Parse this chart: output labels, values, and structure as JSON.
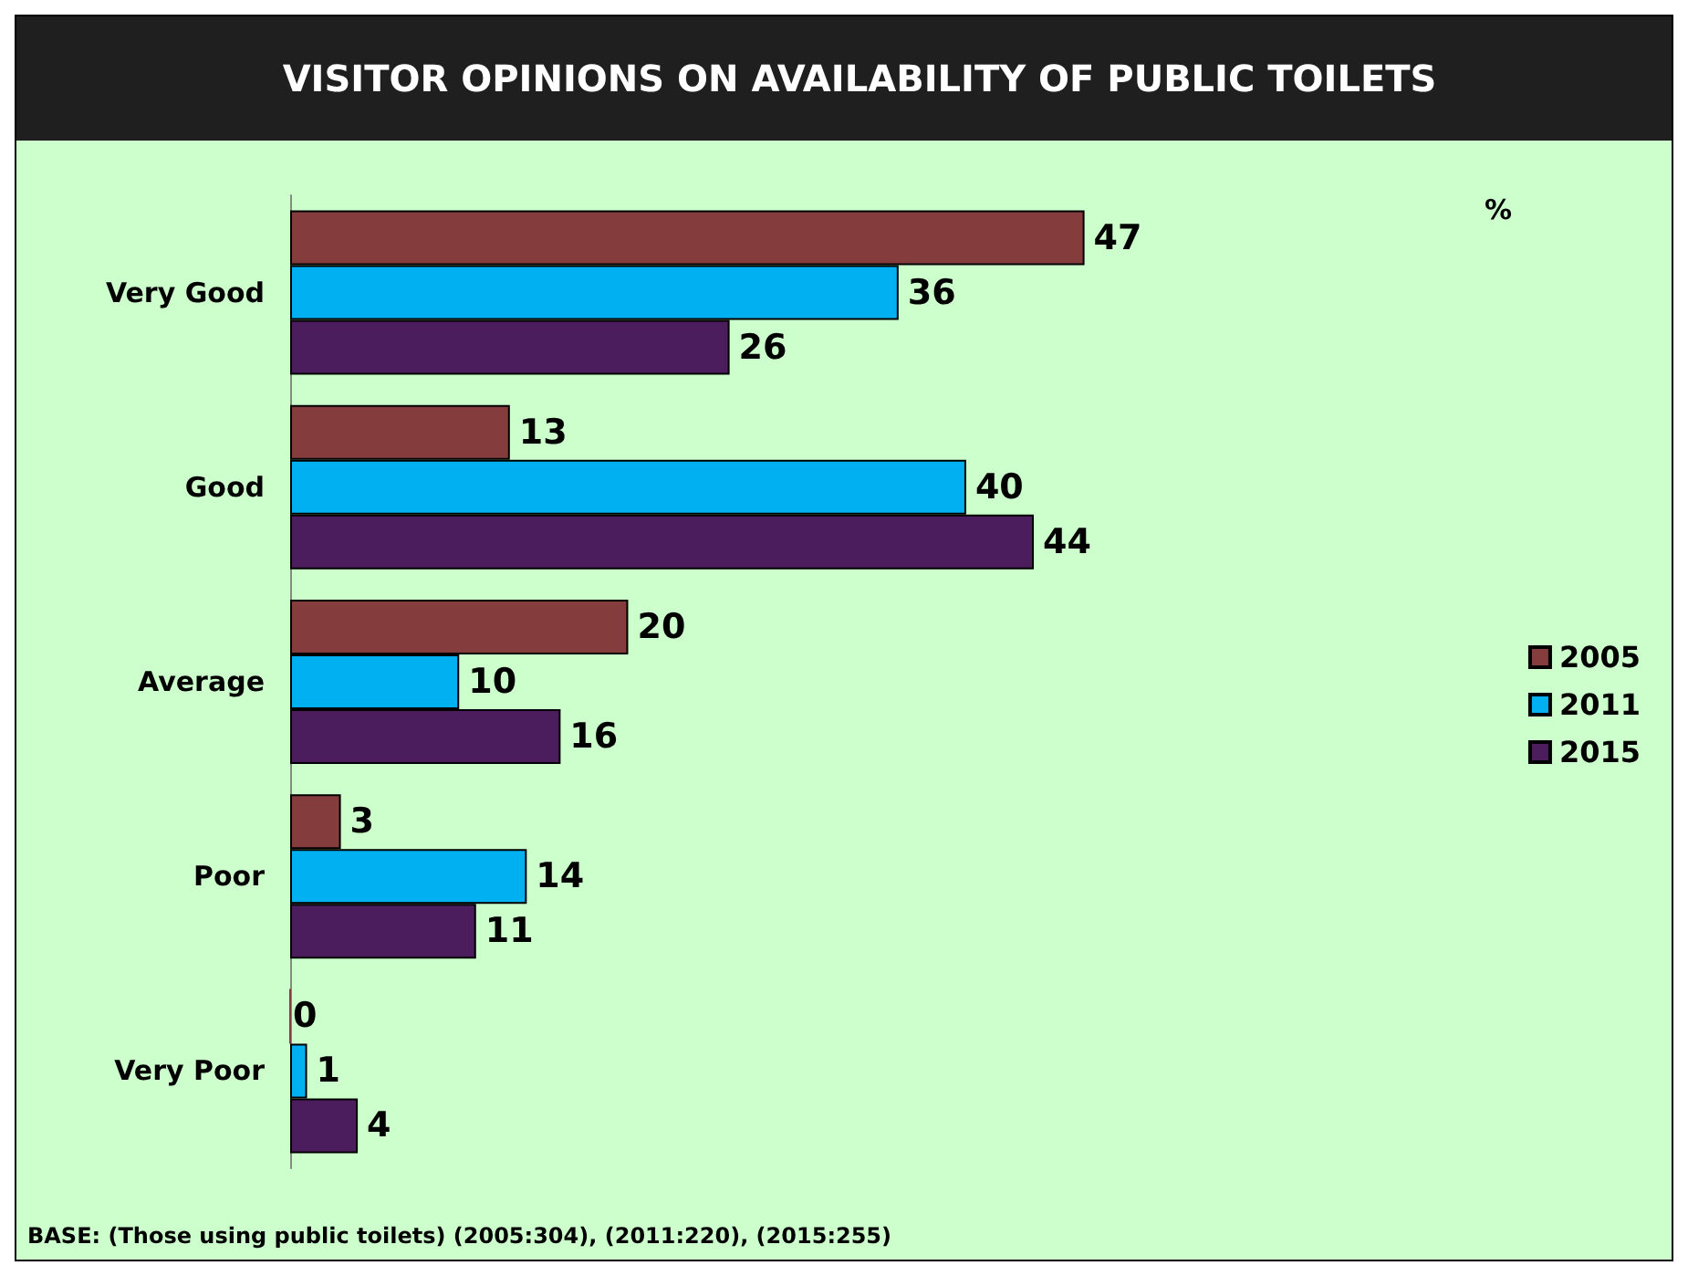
{
  "chart_data": {
    "type": "bar",
    "orientation": "horizontal",
    "title": "VISITOR OPINIONS ON AVAILABILITY OF PUBLIC TOILETS",
    "categories": [
      "Very Good",
      "Good",
      "Average",
      "Poor",
      "Very Poor"
    ],
    "series": [
      {
        "name": "2005",
        "color": "#843c3c",
        "values": [
          47,
          13,
          20,
          3,
          0
        ]
      },
      {
        "name": "2011",
        "color": "#00b0f0",
        "values": [
          36,
          40,
          10,
          14,
          1
        ]
      },
      {
        "name": "2015",
        "color": "#4b1d5c",
        "values": [
          26,
          44,
          16,
          11,
          4
        ]
      }
    ],
    "data_labels": true,
    "legend": "right",
    "grid": false,
    "tick_labels": "y",
    "annotations": [
      "%",
      "BASE: (Those using public toilets) (2005:304), (2011:220), (2015:255)"
    ]
  }
}
